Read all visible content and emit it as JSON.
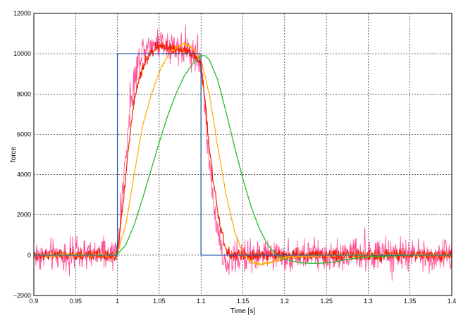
{
  "chart_data": {
    "type": "line",
    "title": "",
    "xlabel": "Time [s]",
    "ylabel": "force",
    "xlim": [
      0.9,
      1.4
    ],
    "ylim": [
      -2000,
      12000
    ],
    "x_ticks": [
      0.9,
      0.95,
      1,
      1.05,
      1.1,
      1.15,
      1.2,
      1.25,
      1.3,
      1.35,
      1.4
    ],
    "x_tick_labels": [
      "0.9",
      "0.95",
      "1",
      "1.05",
      "1.1",
      "1.15",
      "1.2",
      "1.25",
      "1.3",
      "1.35",
      "1.4"
    ],
    "y_ticks": [
      -2000,
      0,
      2000,
      4000,
      6000,
      8000,
      10000,
      12000
    ],
    "y_tick_labels": [
      "−2000",
      "0",
      "2000",
      "4000",
      "6000",
      "8000",
      "10000",
      "12000"
    ],
    "grid": true,
    "series": [
      {
        "color": "#ff5599",
        "style": "noisy",
        "width": 0.9,
        "x": [
          0.9,
          0.95,
          0.995,
          1.0,
          1.005,
          1.01,
          1.015,
          1.02,
          1.03,
          1.05,
          1.07,
          1.09,
          1.1,
          1.105,
          1.11,
          1.115,
          1.12,
          1.125,
          1.13,
          1.14,
          1.15,
          1.2,
          1.25,
          1.3,
          1.35,
          1.4
        ],
        "y": [
          0,
          0,
          0,
          300,
          2500,
          5000,
          7200,
          8800,
          10300,
          10600,
          10400,
          10100,
          9600,
          7200,
          4800,
          2600,
          1000,
          0,
          -500,
          -200,
          0,
          0,
          0,
          0,
          0,
          0
        ],
        "noise": 650
      },
      {
        "color": "#ee2200",
        "style": "noisy",
        "width": 1.2,
        "x": [
          0.9,
          0.95,
          0.998,
          1.0,
          1.005,
          1.01,
          1.015,
          1.02,
          1.03,
          1.04,
          1.05,
          1.07,
          1.09,
          1.1,
          1.105,
          1.11,
          1.115,
          1.12,
          1.125,
          1.13,
          1.135,
          1.14,
          1.15,
          1.2,
          1.25,
          1.3,
          1.35,
          1.4
        ],
        "y": [
          0,
          0,
          0,
          200,
          1800,
          4000,
          6000,
          7700,
          9300,
          10100,
          10400,
          10200,
          10000,
          9500,
          7600,
          5400,
          3600,
          2100,
          1000,
          300,
          -50,
          0,
          0,
          0,
          0,
          0,
          0,
          0
        ],
        "noise": 220
      },
      {
        "color": "#ffaa00",
        "style": "noisy",
        "width": 1.2,
        "x": [
          0.9,
          0.95,
          0.998,
          1.0,
          1.01,
          1.02,
          1.03,
          1.04,
          1.05,
          1.06,
          1.07,
          1.08,
          1.09,
          1.1,
          1.11,
          1.12,
          1.13,
          1.14,
          1.15,
          1.16,
          1.17,
          1.18,
          1.19,
          1.2,
          1.25,
          1.3,
          1.35,
          1.4
        ],
        "y": [
          0,
          0,
          0,
          100,
          1500,
          4000,
          6400,
          7900,
          9100,
          9900,
          10300,
          10500,
          10300,
          9700,
          8000,
          5400,
          3000,
          1200,
          100,
          -350,
          -450,
          -400,
          -250,
          -100,
          0,
          0,
          0,
          0
        ],
        "noise": 60
      },
      {
        "color": "#22bb22",
        "style": "smooth",
        "width": 1.3,
        "x": [
          0.9,
          0.95,
          0.995,
          1.0,
          1.01,
          1.02,
          1.03,
          1.04,
          1.05,
          1.06,
          1.07,
          1.08,
          1.09,
          1.1,
          1.105,
          1.11,
          1.12,
          1.13,
          1.14,
          1.15,
          1.16,
          1.17,
          1.18,
          1.19,
          1.2,
          1.21,
          1.22,
          1.23,
          1.24,
          1.25,
          1.26,
          1.27,
          1.28,
          1.3,
          1.35,
          1.4
        ],
        "y": [
          0,
          0,
          0,
          50,
          500,
          1500,
          2800,
          4200,
          5600,
          6900,
          8000,
          8900,
          9500,
          9900,
          9900,
          9700,
          8700,
          7100,
          5400,
          3800,
          2400,
          1300,
          500,
          0,
          -200,
          -300,
          -380,
          -400,
          -400,
          -380,
          -330,
          -250,
          -180,
          -80,
          0,
          0
        ]
      },
      {
        "color": "#2255aa",
        "style": "step",
        "width": 1.3,
        "x": [
          0.9,
          1.0,
          1.0,
          1.1,
          1.1,
          1.4
        ],
        "y": [
          0,
          0,
          10000,
          10000,
          0,
          0
        ]
      }
    ]
  }
}
